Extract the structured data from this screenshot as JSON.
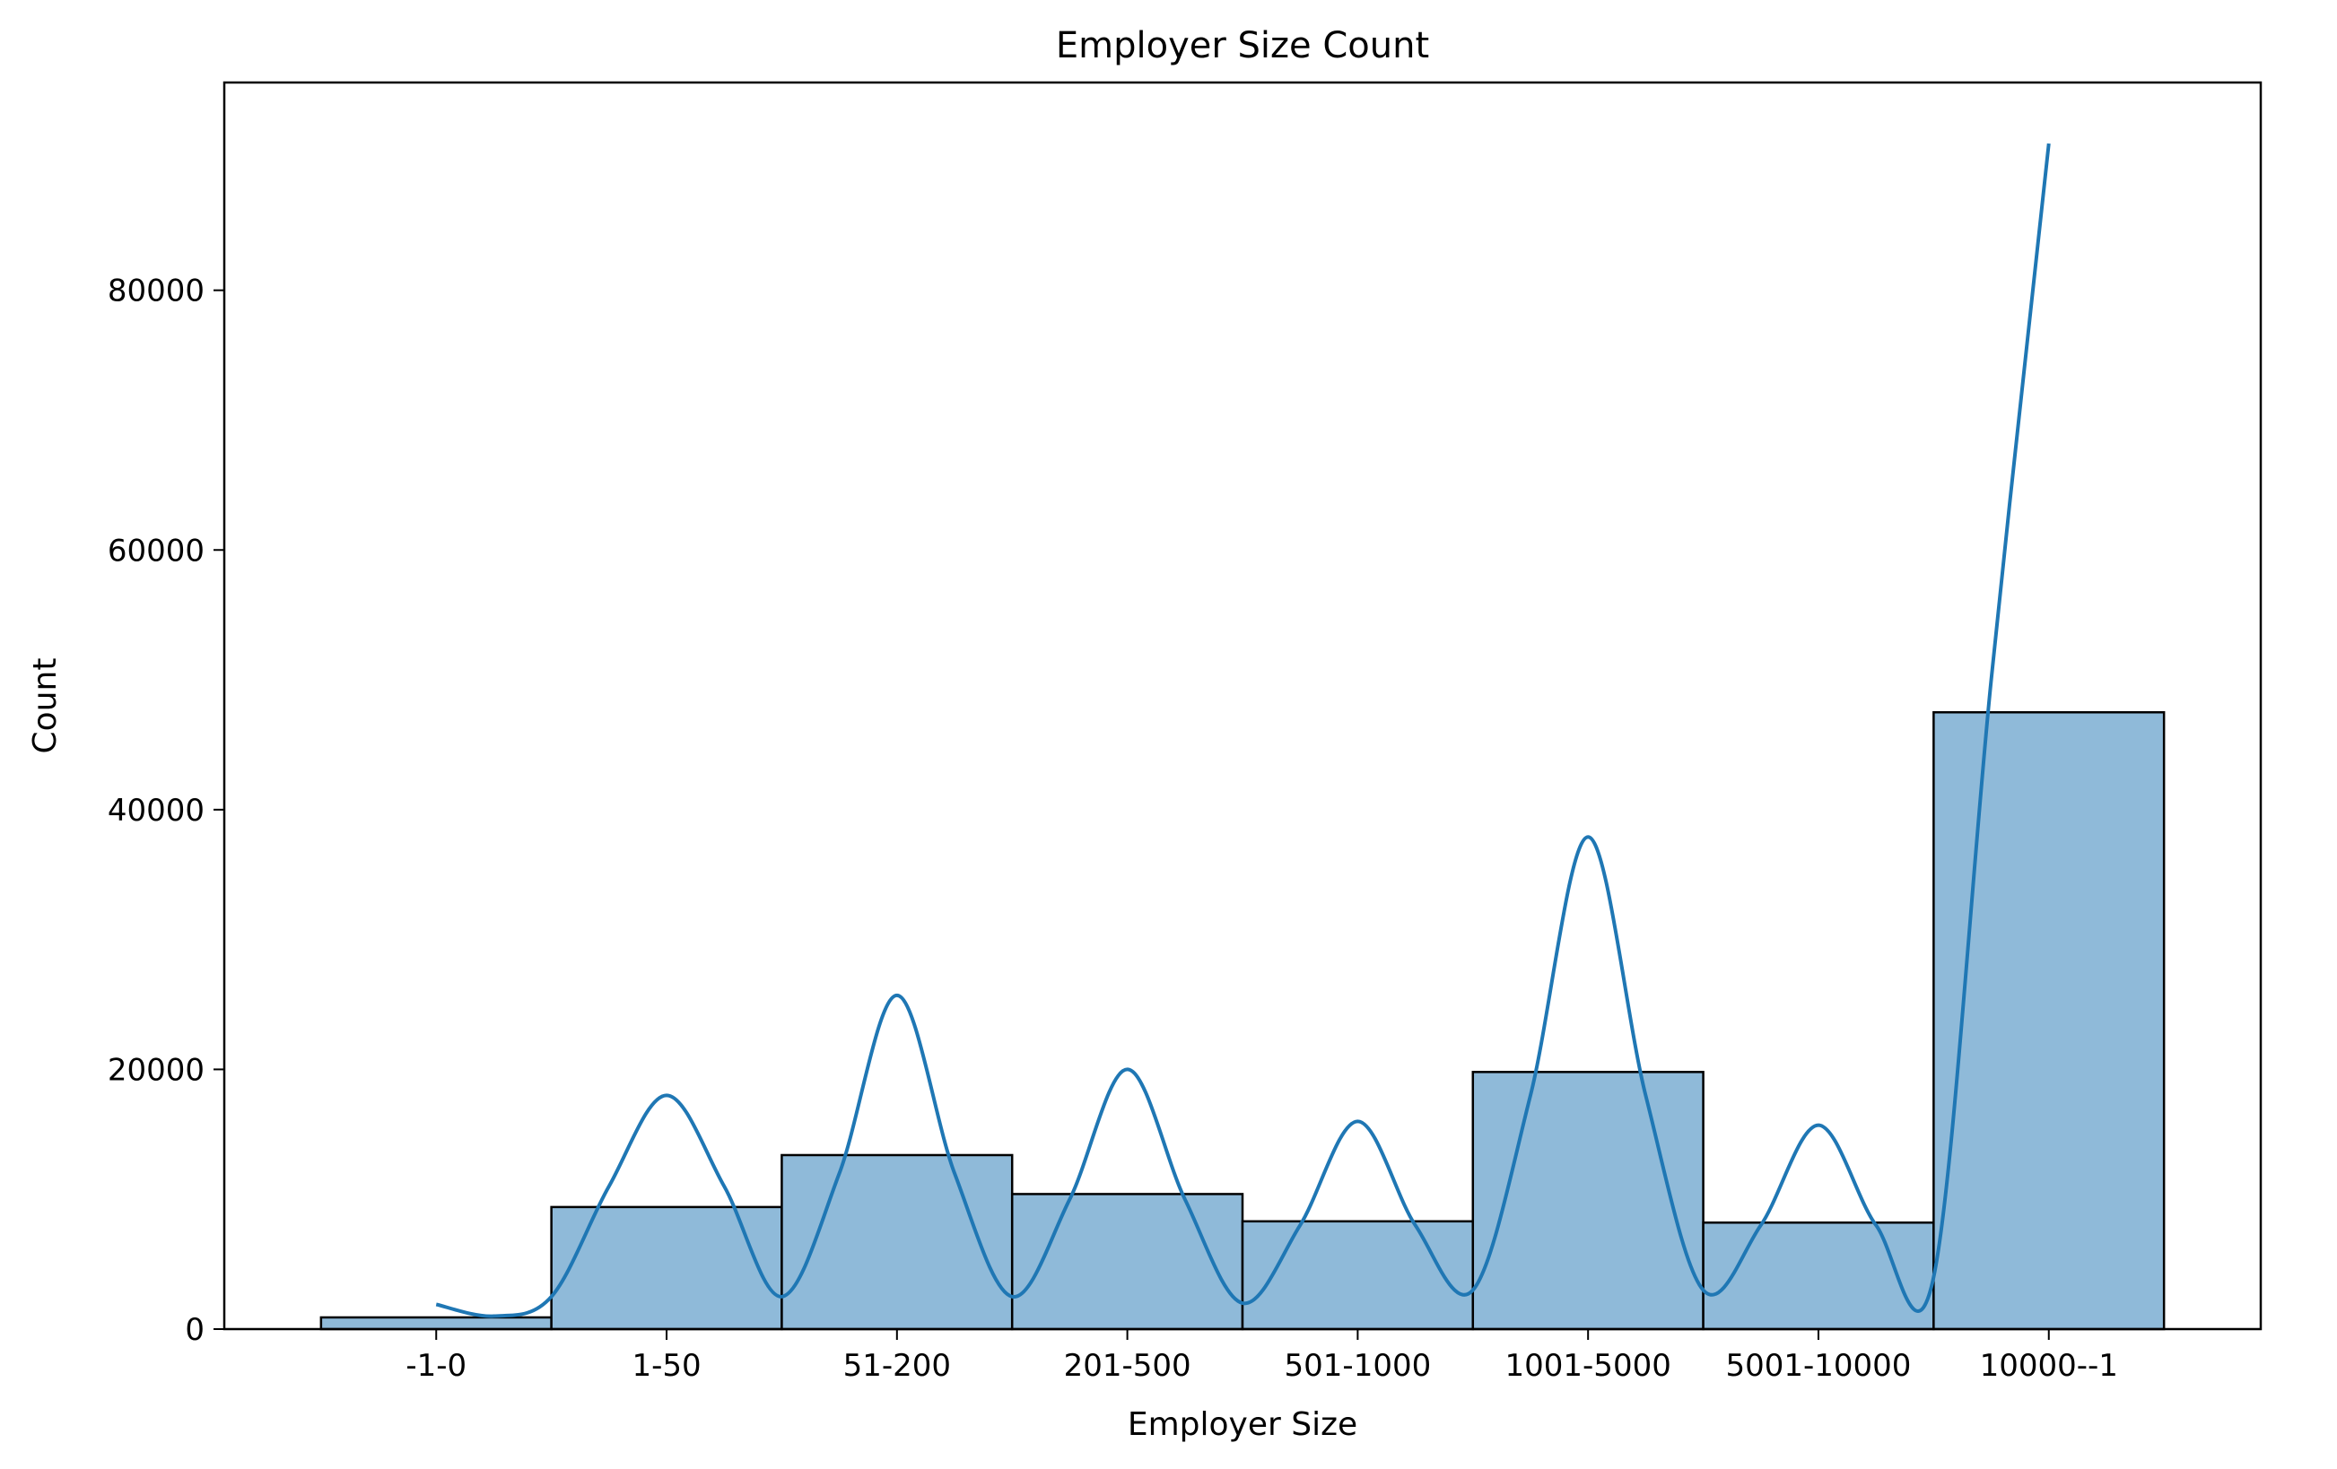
{
  "chart_data": {
    "type": "bar",
    "title": "Employer Size Count",
    "xlabel": "Employer Size",
    "ylabel": "Count",
    "categories": [
      "-1-0",
      "1-50",
      "51-200",
      "201-500",
      "501-1000",
      "1001-5000",
      "5001-10000",
      "10000--1"
    ],
    "values": [
      900,
      9400,
      13400,
      10400,
      8300,
      19800,
      8200,
      47500
    ],
    "ylim": [
      0,
      96000
    ],
    "yticks": [
      0,
      20000,
      40000,
      60000,
      80000
    ],
    "grid": false,
    "kde": {
      "x": [
        0.0,
        0.25,
        0.5,
        0.75,
        1.0,
        1.25,
        1.5,
        1.75,
        2.0,
        2.25,
        2.5,
        2.75,
        3.0,
        3.25,
        3.5,
        3.75,
        4.0,
        4.25,
        4.5,
        4.75,
        5.0,
        5.25,
        5.5,
        5.75,
        6.0,
        6.25,
        6.5,
        6.75,
        7.0
      ],
      "y": [
        1900,
        1000,
        2500,
        11000,
        18000,
        11000,
        2500,
        12000,
        25700,
        12000,
        2500,
        10000,
        20000,
        10000,
        2000,
        8000,
        16000,
        8000,
        3000,
        18000,
        37900,
        18000,
        3000,
        8000,
        15700,
        8000,
        4000,
        50000,
        91300
      ]
    },
    "colors": {
      "bar_fill": "#8fbad9",
      "bar_edge": "#000000",
      "kde_line": "#1f77b4"
    }
  }
}
